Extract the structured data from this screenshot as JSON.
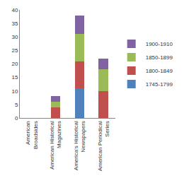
{
  "chart_data": {
    "type": "bar",
    "stacked": true,
    "categories": [
      "American Broadsides",
      "American Historical Magazines",
      "America's Historical Newspapers",
      "American Periodical Series"
    ],
    "series": [
      {
        "name": "1745-1799",
        "color": "#4f81bd",
        "values": [
          0,
          0,
          11,
          0
        ]
      },
      {
        "name": "1800-1849",
        "color": "#c0504d",
        "values": [
          0,
          4,
          10,
          10
        ]
      },
      {
        "name": "1850-1899",
        "color": "#9bbb59",
        "values": [
          0,
          2,
          10,
          8
        ]
      },
      {
        "name": "1900-1910",
        "color": "#8064a2",
        "values": [
          0,
          2,
          7,
          4
        ]
      }
    ],
    "ylim": [
      0,
      40
    ],
    "yticks": [
      0,
      5,
      10,
      15,
      20,
      25,
      30,
      35,
      40
    ],
    "grid": false,
    "legend": "right"
  }
}
